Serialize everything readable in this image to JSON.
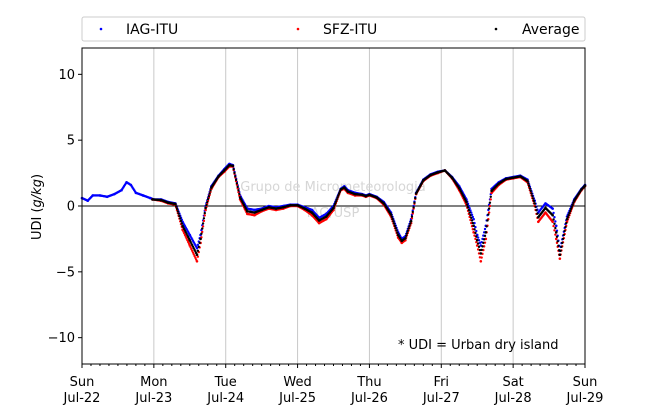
{
  "chart_data": {
    "type": "scatter",
    "ylabel": "UDI (g/kg)",
    "ylabel_prefix": "UDI (",
    "ylabel_unit": "g/kg",
    "ylabel_suffix": ")",
    "ylim": [
      -12,
      12
    ],
    "yticks": [
      -10,
      -5,
      0,
      5,
      10
    ],
    "xlim": [
      0,
      7
    ],
    "x_unit": "days from Sun Jul-22 00:00",
    "xtick_labels": [
      {
        "day": "Sun",
        "date": "Jul-22"
      },
      {
        "day": "Mon",
        "date": "Jul-23"
      },
      {
        "day": "Tue",
        "date": "Jul-24"
      },
      {
        "day": "Wed",
        "date": "Jul-25"
      },
      {
        "day": "Thu",
        "date": "Jul-26"
      },
      {
        "day": "Fri",
        "date": "Jul-27"
      },
      {
        "day": "Sat",
        "date": "Jul-28"
      },
      {
        "day": "Sun",
        "date": "Jul-29"
      }
    ],
    "grid": "vertical lines at day boundaries",
    "zero_line": true,
    "legend_position": "top, above plot",
    "watermark": [
      "Grupo de Micrometeorologia",
      "IAG/USP"
    ],
    "annotation": "* UDI = Urban dry island",
    "series": [
      {
        "name": "IAG-ITU",
        "color": "#0000ff",
        "x": [
          0,
          0.08,
          0.15,
          0.25,
          0.35,
          0.45,
          0.55,
          0.62,
          0.68,
          0.75,
          0.85,
          0.95,
          1.0,
          1.1,
          1.2,
          1.3,
          1.4,
          1.5,
          1.6,
          1.65,
          1.72,
          1.8,
          1.9,
          1.98,
          2.05,
          2.1,
          2.2,
          2.3,
          2.4,
          2.5,
          2.6,
          2.7,
          2.8,
          2.9,
          3.0,
          3.1,
          3.2,
          3.3,
          3.4,
          3.5,
          3.6,
          3.65,
          3.7,
          3.8,
          3.9,
          3.95,
          4.0,
          4.1,
          4.2,
          4.3,
          4.4,
          4.45,
          4.5,
          4.58,
          4.65,
          4.75,
          4.85,
          4.95,
          5.05,
          5.15,
          5.25,
          5.35,
          5.45,
          5.5,
          5.55,
          5.62,
          5.7,
          5.8,
          5.9,
          6.0,
          6.1,
          6.2,
          6.3,
          6.35,
          6.45,
          6.55,
          6.6,
          6.65,
          6.75,
          6.85,
          6.95,
          7.0
        ],
        "y": [
          0.6,
          0.4,
          0.8,
          0.8,
          0.7,
          0.9,
          1.2,
          1.8,
          1.6,
          1.0,
          0.8,
          0.6,
          0.5,
          0.5,
          0.3,
          0.2,
          -1.2,
          -2.2,
          -3.2,
          -2.2,
          0.0,
          1.5,
          2.3,
          2.8,
          3.2,
          3.1,
          0.8,
          -0.2,
          -0.3,
          -0.2,
          0.0,
          -0.1,
          0.0,
          0.1,
          0.1,
          -0.1,
          -0.3,
          -0.9,
          -0.6,
          0.0,
          1.3,
          1.5,
          1.2,
          1.0,
          0.9,
          0.8,
          0.9,
          0.7,
          0.3,
          -0.5,
          -2.0,
          -2.5,
          -2.3,
          -1.0,
          1.0,
          2.0,
          2.4,
          2.6,
          2.7,
          2.2,
          1.5,
          0.5,
          -1.0,
          -2.2,
          -3.0,
          -1.5,
          1.3,
          1.8,
          2.1,
          2.2,
          2.3,
          2.0,
          0.4,
          -0.5,
          0.2,
          -0.2,
          -1.5,
          -3.4,
          -0.8,
          0.5,
          1.3,
          1.6
        ]
      },
      {
        "name": "SFZ-ITU",
        "color": "#ff0000",
        "x": [
          0.98,
          1.1,
          1.2,
          1.3,
          1.4,
          1.5,
          1.6,
          1.65,
          1.72,
          1.8,
          1.9,
          1.98,
          2.05,
          2.1,
          2.2,
          2.3,
          2.4,
          2.5,
          2.6,
          2.7,
          2.8,
          2.9,
          3.0,
          3.1,
          3.2,
          3.3,
          3.4,
          3.5,
          3.6,
          3.65,
          3.7,
          3.8,
          3.9,
          3.95,
          4.0,
          4.1,
          4.2,
          4.3,
          4.4,
          4.45,
          4.5,
          4.58,
          4.65,
          4.75,
          4.85,
          4.95,
          5.05,
          5.15,
          5.25,
          5.35,
          5.45,
          5.5,
          5.55,
          5.62,
          5.7,
          5.8,
          5.9,
          6.0,
          6.1,
          6.2,
          6.3,
          6.35,
          6.45,
          6.55,
          6.6,
          6.65,
          6.75,
          6.85,
          6.95,
          7.0
        ],
        "y": [
          0.5,
          0.4,
          0.2,
          0.1,
          -1.8,
          -3.0,
          -4.2,
          -2.8,
          -0.3,
          1.3,
          2.2,
          2.6,
          3.0,
          3.0,
          0.5,
          -0.6,
          -0.7,
          -0.4,
          -0.2,
          -0.3,
          -0.2,
          0.0,
          0.0,
          -0.3,
          -0.7,
          -1.3,
          -1.0,
          -0.3,
          1.2,
          1.3,
          1.0,
          0.8,
          0.8,
          0.7,
          0.8,
          0.6,
          0.1,
          -0.8,
          -2.4,
          -2.8,
          -2.6,
          -1.3,
          0.9,
          1.9,
          2.3,
          2.5,
          2.7,
          2.1,
          1.2,
          0.1,
          -2.0,
          -3.0,
          -4.2,
          -2.5,
          1.0,
          1.6,
          2.0,
          2.1,
          2.2,
          1.8,
          0.0,
          -1.2,
          -0.5,
          -1.2,
          -2.5,
          -4.0,
          -1.2,
          0.3,
          1.2,
          1.5
        ]
      },
      {
        "name": "Average",
        "color": "#000000",
        "x": [
          0.98,
          1.1,
          1.2,
          1.3,
          1.4,
          1.5,
          1.6,
          1.65,
          1.72,
          1.8,
          1.9,
          1.98,
          2.05,
          2.1,
          2.2,
          2.3,
          2.4,
          2.5,
          2.6,
          2.7,
          2.8,
          2.9,
          3.0,
          3.1,
          3.2,
          3.3,
          3.4,
          3.5,
          3.6,
          3.65,
          3.7,
          3.8,
          3.9,
          3.95,
          4.0,
          4.1,
          4.2,
          4.3,
          4.4,
          4.45,
          4.5,
          4.58,
          4.65,
          4.75,
          4.85,
          4.95,
          5.05,
          5.15,
          5.25,
          5.35,
          5.45,
          5.5,
          5.55,
          5.62,
          5.7,
          5.8,
          5.9,
          6.0,
          6.1,
          6.2,
          6.3,
          6.35,
          6.45,
          6.55,
          6.6,
          6.65,
          6.75,
          6.85,
          6.95,
          7.0
        ],
        "y": [
          0.5,
          0.45,
          0.25,
          0.15,
          -1.5,
          -2.6,
          -3.7,
          -2.5,
          -0.15,
          1.4,
          2.25,
          2.7,
          3.1,
          3.05,
          0.65,
          -0.4,
          -0.5,
          -0.3,
          -0.1,
          -0.2,
          -0.1,
          0.05,
          0.05,
          -0.2,
          -0.5,
          -1.1,
          -0.8,
          -0.15,
          1.25,
          1.4,
          1.1,
          0.9,
          0.85,
          0.75,
          0.85,
          0.65,
          0.2,
          -0.65,
          -2.2,
          -2.65,
          -2.45,
          -1.15,
          0.95,
          1.95,
          2.35,
          2.55,
          2.7,
          2.15,
          1.35,
          0.3,
          -1.5,
          -2.6,
          -3.6,
          -2.0,
          1.15,
          1.7,
          2.05,
          2.15,
          2.25,
          1.9,
          0.2,
          -0.85,
          -0.15,
          -0.7,
          -2.0,
          -3.7,
          -1.0,
          0.4,
          1.25,
          1.55
        ]
      }
    ]
  }
}
